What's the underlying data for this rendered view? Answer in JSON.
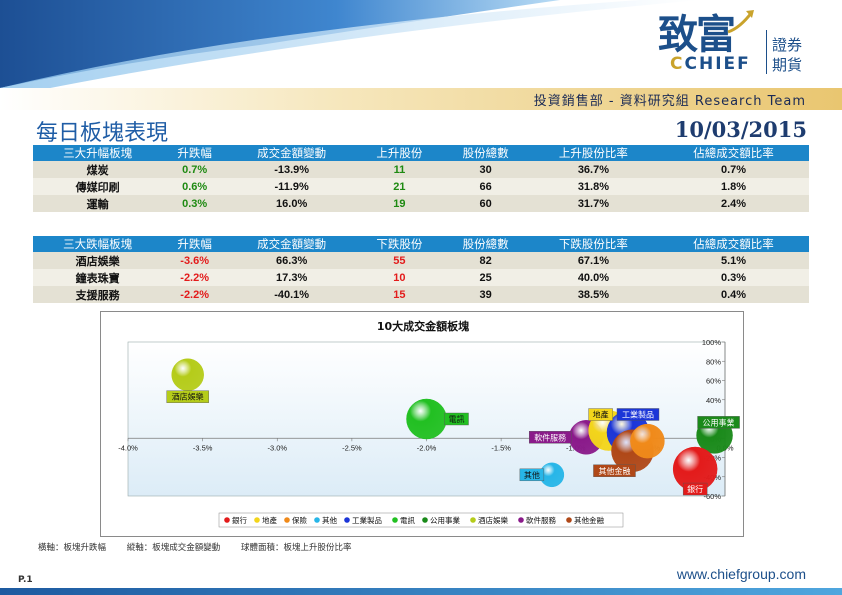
{
  "logo": {
    "chinese": "致富",
    "english_c": "C",
    "english": "CHIEF",
    "sub1": "證券",
    "sub2": "期貨"
  },
  "header": {
    "department": "投資銷售部 - 資料研究組 Research Team"
  },
  "title": "每日板塊表現",
  "date": "10/03/2015",
  "gain_table": {
    "headers": [
      "三大升幅板塊",
      "升跌幅",
      "成交金額變動",
      "上升股份",
      "股份總數",
      "上升股份比率",
      "佔總成交額比率"
    ],
    "rows": [
      [
        "煤炭",
        "0.7%",
        "-13.9%",
        "11",
        "30",
        "36.7%",
        "0.7%"
      ],
      [
        "傳媒印刷",
        "0.6%",
        "-11.9%",
        "21",
        "66",
        "31.8%",
        "1.8%"
      ],
      [
        "運輸",
        "0.3%",
        "16.0%",
        "19",
        "60",
        "31.7%",
        "2.4%"
      ]
    ]
  },
  "loss_table": {
    "headers": [
      "三大跌幅板塊",
      "升跌幅",
      "成交金額變動",
      "下跌股份",
      "股份總數",
      "下跌股份比率",
      "佔總成交額比率"
    ],
    "rows": [
      [
        "酒店娛樂",
        "-3.6%",
        "66.3%",
        "55",
        "82",
        "67.1%",
        "5.1%"
      ],
      [
        "鐘表珠寶",
        "-2.2%",
        "17.3%",
        "10",
        "25",
        "40.0%",
        "0.3%"
      ],
      [
        "支援服務",
        "-2.2%",
        "-40.1%",
        "15",
        "39",
        "38.5%",
        "0.4%"
      ]
    ]
  },
  "chart_data": {
    "type": "scatter",
    "title": "10大成交金額板塊",
    "xlim": [
      -4.0,
      0.0
    ],
    "ylim": [
      -60,
      100
    ],
    "x_ticks": [
      "-4.0%",
      "-3.5%",
      "-3.0%",
      "-2.5%",
      "-2.0%",
      "-1.5%",
      "-1.0%",
      "-0.5%",
      "0.0%"
    ],
    "y_ticks": [
      "100%",
      "80%",
      "60%",
      "40%",
      "20%",
      "0%",
      "-20%",
      "-40%",
      "-60%"
    ],
    "series": [
      {
        "name": "銀行",
        "x": -0.2,
        "y": -32,
        "size": 22,
        "color": "#e31b1b"
      },
      {
        "name": "地產",
        "x": -0.78,
        "y": 8,
        "size": 20,
        "color": "#f3d51b"
      },
      {
        "name": "保險",
        "x": -0.52,
        "y": -3,
        "size": 17,
        "color": "#f08a1a"
      },
      {
        "name": "其他",
        "x": -1.16,
        "y": -38,
        "size": 12,
        "color": "#27b6e8"
      },
      {
        "name": "工業製品",
        "x": -0.65,
        "y": 6,
        "size": 21,
        "color": "#1c36d8"
      },
      {
        "name": "電訊",
        "x": -2.0,
        "y": 20,
        "size": 20,
        "color": "#22c022"
      },
      {
        "name": "公用事業",
        "x": -0.07,
        "y": 3,
        "size": 18,
        "color": "#1a8a1a"
      },
      {
        "name": "酒店娛樂",
        "x": -3.6,
        "y": 66,
        "size": 16,
        "color": "#b5cc1a"
      },
      {
        "name": "軟件服務",
        "x": -0.93,
        "y": 1,
        "size": 17,
        "color": "#8a1a8a"
      },
      {
        "name": "其他金融",
        "x": -0.62,
        "y": -13,
        "size": 21,
        "color": "#b04818"
      }
    ]
  },
  "footnote": {
    "x": "橫軸：板塊升跌幅",
    "y": "縱軸：板塊成交金額變動",
    "size": "球體面積：板塊上升股份比率"
  },
  "page_number": "P.1",
  "website": "www.chiefgroup.com",
  "colors": {
    "header_blue": "#1c86c9",
    "title_blue": "#1f5da6",
    "gold": "#e9c670"
  }
}
